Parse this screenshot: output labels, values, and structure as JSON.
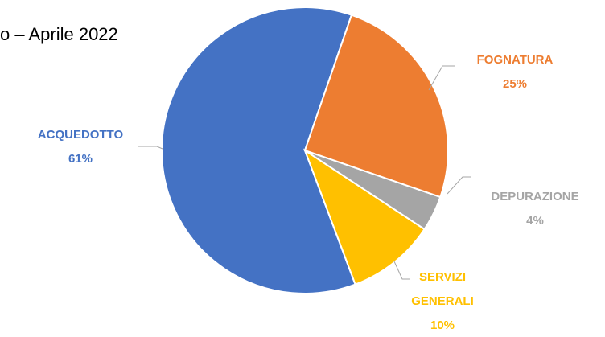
{
  "chart_data": {
    "type": "pie",
    "title": "o – Aprile 2022",
    "categories": [
      "FOGNATURA",
      "DEPURAZIONE",
      "SERVIZI GENERALI",
      "ACQUEDOTTO"
    ],
    "values": [
      25,
      4,
      10,
      61
    ],
    "value_labels": [
      "25%",
      "4%",
      "10%",
      "61%"
    ],
    "colors": [
      "#ed7d31",
      "#a5a5a5",
      "#ffc000",
      "#4472c4"
    ]
  }
}
